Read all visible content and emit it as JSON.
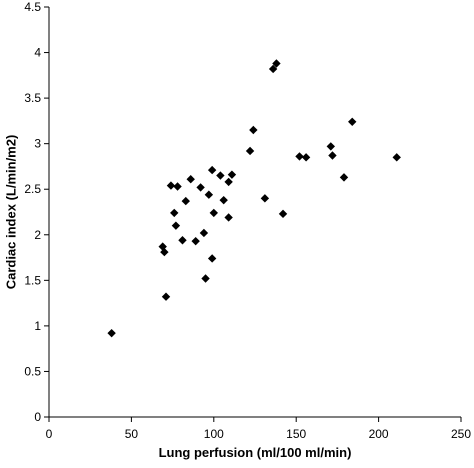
{
  "chart_data": {
    "type": "scatter",
    "title": "",
    "xlabel": "Lung perfusion (ml/100 ml/min)",
    "ylabel": "Cardiac index (L/min/m2)",
    "xlim": [
      0,
      250
    ],
    "ylim": [
      0,
      4.5
    ],
    "xticks": [
      0,
      50,
      100,
      150,
      200,
      250
    ],
    "yticks": [
      0,
      0.5,
      1,
      1.5,
      2,
      2.5,
      3,
      3.5,
      4,
      4.5
    ],
    "xtick_labels": [
      "0",
      "50",
      "100",
      "150",
      "200",
      "250"
    ],
    "ytick_labels": [
      "0",
      "0.5",
      "1",
      "1.5",
      "2",
      "2.5",
      "3",
      "3.5",
      "4",
      "4.5"
    ],
    "grid": false,
    "legend": "none",
    "marker": "diamond",
    "color": "#000000",
    "points": [
      {
        "x": 38,
        "y": 0.92
      },
      {
        "x": 69,
        "y": 1.87
      },
      {
        "x": 70,
        "y": 1.81
      },
      {
        "x": 71,
        "y": 1.32
      },
      {
        "x": 74,
        "y": 2.54
      },
      {
        "x": 76,
        "y": 2.24
      },
      {
        "x": 77,
        "y": 2.1
      },
      {
        "x": 78,
        "y": 2.53
      },
      {
        "x": 81,
        "y": 1.94
      },
      {
        "x": 83,
        "y": 2.37
      },
      {
        "x": 86,
        "y": 2.61
      },
      {
        "x": 89,
        "y": 1.93
      },
      {
        "x": 92,
        "y": 2.52
      },
      {
        "x": 94,
        "y": 2.02
      },
      {
        "x": 95,
        "y": 1.52
      },
      {
        "x": 97,
        "y": 2.44
      },
      {
        "x": 99,
        "y": 2.71
      },
      {
        "x": 100,
        "y": 2.24
      },
      {
        "x": 99,
        "y": 1.74
      },
      {
        "x": 104,
        "y": 2.65
      },
      {
        "x": 106,
        "y": 2.38
      },
      {
        "x": 109,
        "y": 2.58
      },
      {
        "x": 109,
        "y": 2.19
      },
      {
        "x": 111,
        "y": 2.66
      },
      {
        "x": 122,
        "y": 2.92
      },
      {
        "x": 124,
        "y": 3.15
      },
      {
        "x": 131,
        "y": 2.4
      },
      {
        "x": 136,
        "y": 3.82
      },
      {
        "x": 138,
        "y": 3.88
      },
      {
        "x": 142,
        "y": 2.23
      },
      {
        "x": 152,
        "y": 2.86
      },
      {
        "x": 156,
        "y": 2.85
      },
      {
        "x": 171,
        "y": 2.97
      },
      {
        "x": 172,
        "y": 2.87
      },
      {
        "x": 179,
        "y": 2.63
      },
      {
        "x": 184,
        "y": 3.24
      },
      {
        "x": 211,
        "y": 2.85
      }
    ]
  }
}
